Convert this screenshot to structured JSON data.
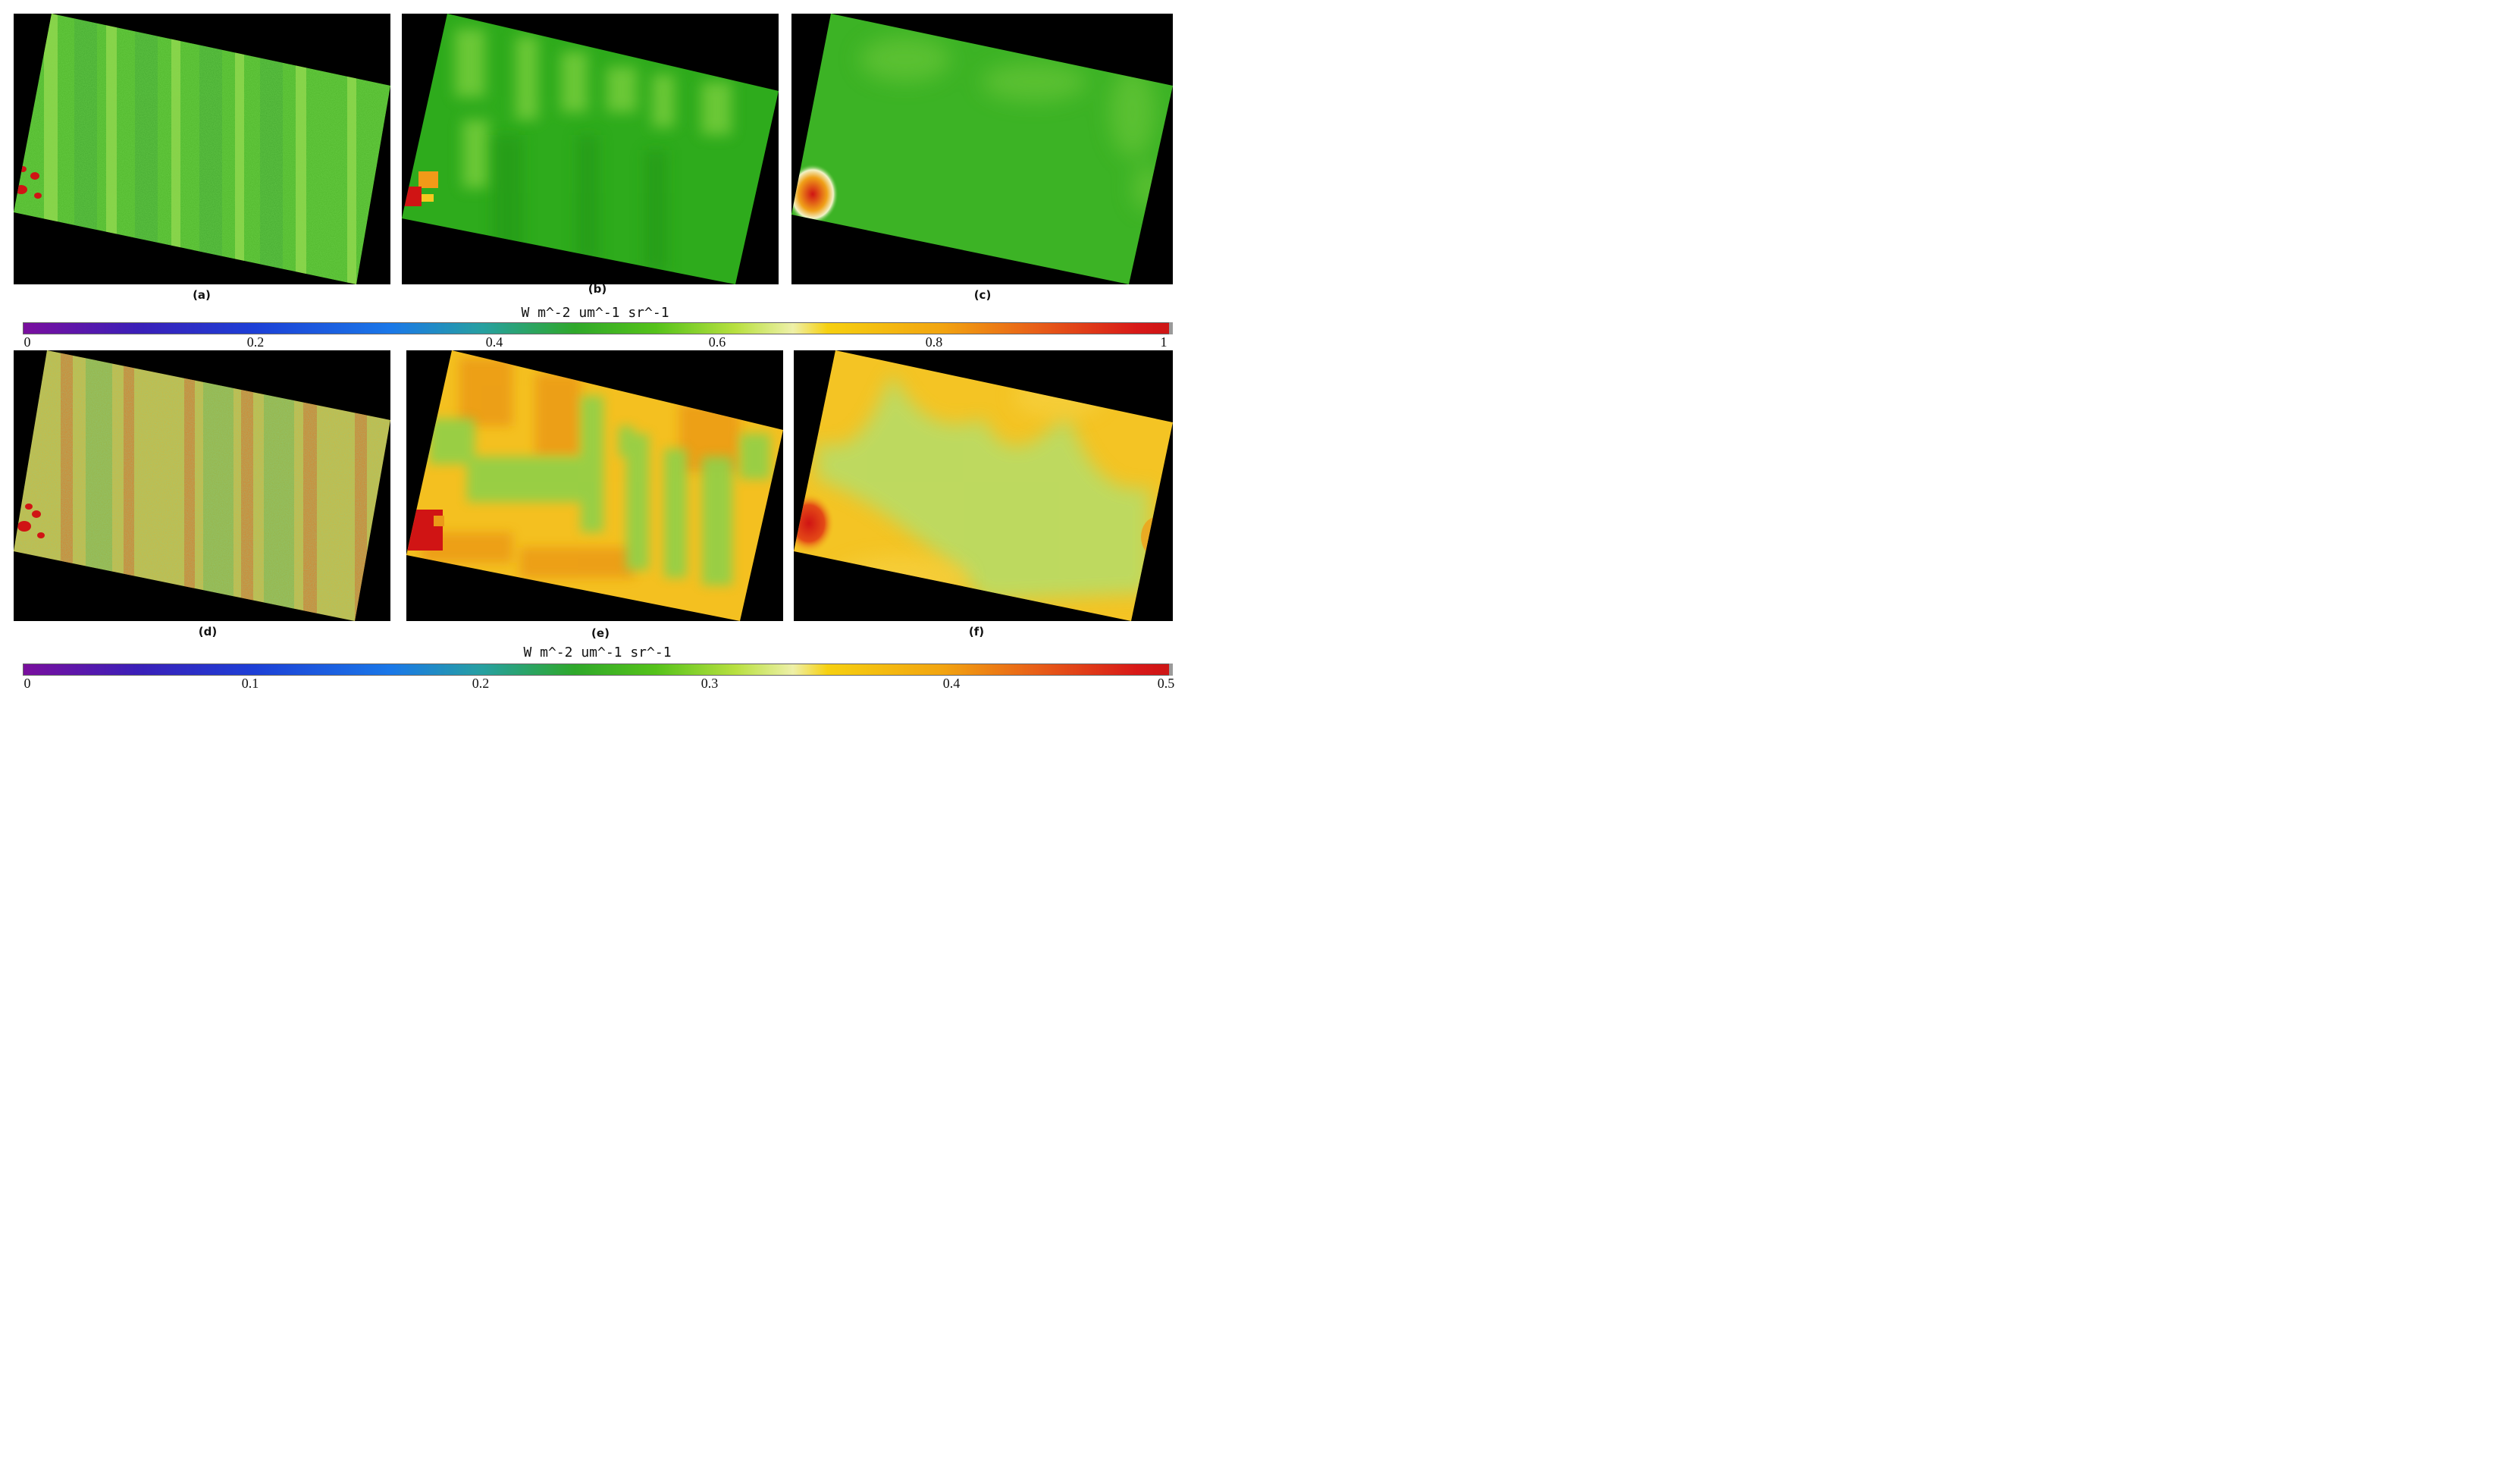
{
  "panels": [
    {
      "label": "(a)"
    },
    {
      "label": "(b)"
    },
    {
      "label": "(c)"
    },
    {
      "label": "(d)"
    },
    {
      "label": "(e)"
    },
    {
      "label": "(f)"
    }
  ],
  "colorbars": [
    {
      "unit": "W m^-2 um^-1 sr^-1",
      "ticks": [
        "0",
        "0.2",
        "0.4",
        "0.6",
        "0.8",
        "1"
      ]
    },
    {
      "unit": "W m^-2 um^-1 sr^-1",
      "ticks": [
        "0",
        "0.1",
        "0.2",
        "0.3",
        "0.4",
        "0.5"
      ]
    }
  ],
  "colors": {
    "background": "#000000",
    "green_field": "#3fb526",
    "light_green": "#a8dc5a",
    "yellow": "#f4c81a",
    "orange": "#eb9a18",
    "red": "#d01414"
  }
}
